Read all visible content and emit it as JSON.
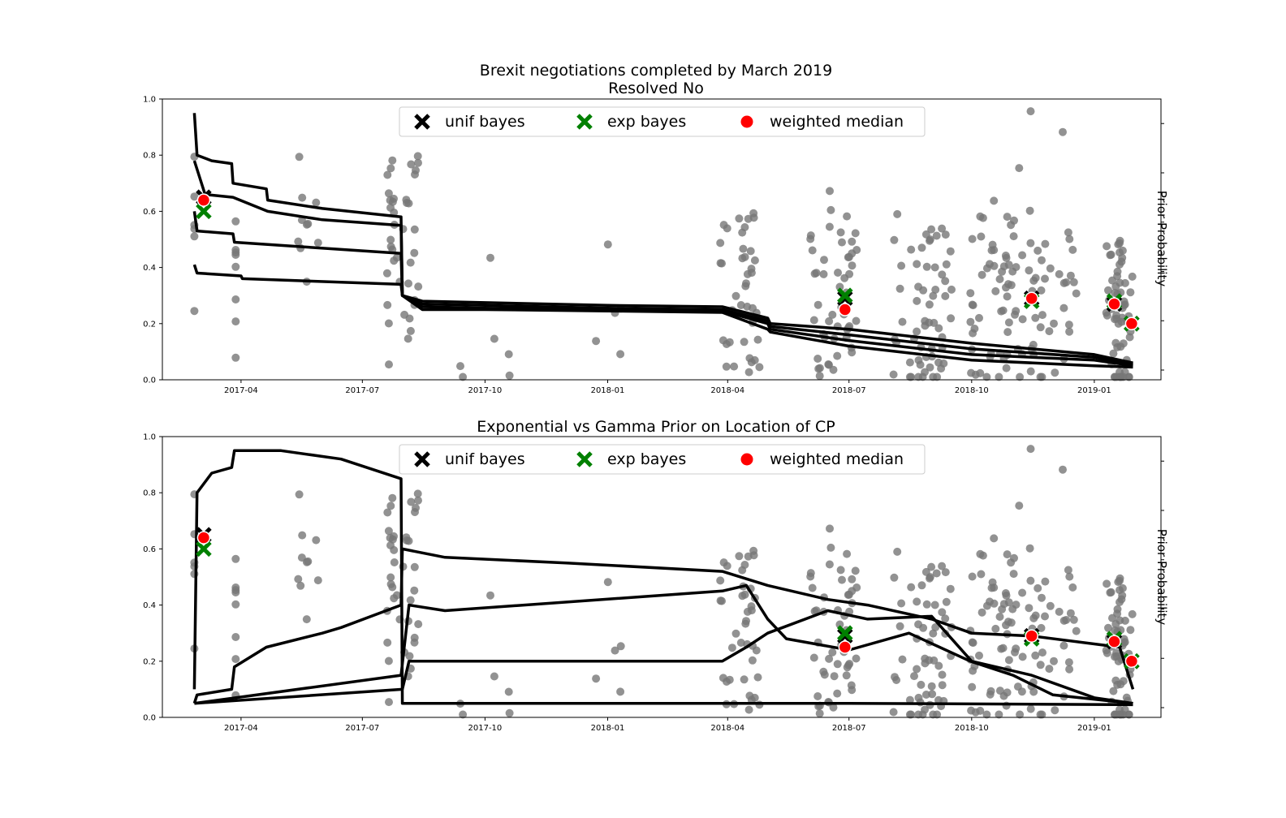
{
  "chart_data": [
    {
      "type": "scatter",
      "title": "Brexit negotiations completed by March 2019",
      "subtitle": "Resolved No",
      "xlabel": "",
      "ylabel": "",
      "right_ylabel": "Prior Probability",
      "x_range": [
        "2017-02-01",
        "2019-02-20"
      ],
      "ylim": [
        0,
        1
      ],
      "x_ticks": [
        "2017-04",
        "2017-07",
        "2017-10",
        "2018-01",
        "2018-04",
        "2018-07",
        "2018-10",
        "2019-01"
      ],
      "y_ticks": [
        "0.0",
        "0.2",
        "0.4",
        "0.6",
        "0.8",
        "1.0"
      ],
      "grid": false,
      "legend_position": "top-center",
      "legend": [
        {
          "label": "unif bayes",
          "marker": "x",
          "color": "#000000"
        },
        {
          "label": "exp bayes",
          "marker": "x",
          "color": "#008000"
        },
        {
          "label": "weighted median",
          "marker": "o",
          "color": "#ff0000"
        }
      ],
      "markers": {
        "unif_bayes": [
          [
            "2017-03-04",
            0.65
          ],
          [
            "2018-06-28",
            0.29
          ],
          [
            "2018-11-15",
            0.29
          ],
          [
            "2019-01-16",
            0.27
          ],
          [
            "2019-01-29",
            0.2
          ]
        ],
        "exp_bayes": [
          [
            "2017-03-04",
            0.6
          ],
          [
            "2018-06-28",
            0.3
          ],
          [
            "2018-11-15",
            0.28
          ],
          [
            "2019-01-16",
            0.28
          ],
          [
            "2019-01-29",
            0.2
          ]
        ],
        "weighted_median": [
          [
            "2017-03-04",
            0.64
          ],
          [
            "2018-06-28",
            0.25
          ],
          [
            "2018-11-15",
            0.29
          ],
          [
            "2019-01-16",
            0.27
          ],
          [
            "2019-01-29",
            0.2
          ]
        ]
      },
      "curves": [
        [
          [
            "2017-02-25",
            0.95
          ],
          [
            "2017-02-27",
            0.8
          ],
          [
            "2017-03-10",
            0.78
          ],
          [
            "2017-03-25",
            0.77
          ],
          [
            "2017-03-26",
            0.7
          ],
          [
            "2017-04-20",
            0.68
          ],
          [
            "2017-04-21",
            0.64
          ],
          [
            "2017-06-01",
            0.61
          ],
          [
            "2017-07-30",
            0.58
          ],
          [
            "2017-07-31",
            0.3
          ],
          [
            "2017-08-15",
            0.28
          ],
          [
            "2017-10-01",
            0.275
          ],
          [
            "2018-01-01",
            0.265
          ],
          [
            "2018-03-28",
            0.26
          ],
          [
            "2018-05-01",
            0.22
          ],
          [
            "2018-05-03",
            0.2
          ],
          [
            "2018-07-01",
            0.18
          ],
          [
            "2018-10-01",
            0.13
          ],
          [
            "2019-01-01",
            0.09
          ],
          [
            "2019-01-30",
            0.06
          ]
        ],
        [
          [
            "2017-02-25",
            0.78
          ],
          [
            "2017-03-05",
            0.66
          ],
          [
            "2017-03-26",
            0.65
          ],
          [
            "2017-04-21",
            0.6
          ],
          [
            "2017-06-01",
            0.57
          ],
          [
            "2017-07-30",
            0.55
          ],
          [
            "2017-07-31",
            0.3
          ],
          [
            "2017-08-15",
            0.27
          ],
          [
            "2017-10-01",
            0.265
          ],
          [
            "2018-01-01",
            0.255
          ],
          [
            "2018-03-28",
            0.25
          ],
          [
            "2018-05-01",
            0.21
          ],
          [
            "2018-05-03",
            0.19
          ],
          [
            "2018-07-01",
            0.16
          ],
          [
            "2018-10-01",
            0.11
          ],
          [
            "2019-01-01",
            0.08
          ],
          [
            "2019-01-30",
            0.055
          ]
        ],
        [
          [
            "2017-02-25",
            0.6
          ],
          [
            "2017-02-27",
            0.53
          ],
          [
            "2017-03-26",
            0.52
          ],
          [
            "2017-03-27",
            0.49
          ],
          [
            "2017-07-30",
            0.45
          ],
          [
            "2017-07-31",
            0.3
          ],
          [
            "2017-08-15",
            0.26
          ],
          [
            "2017-10-01",
            0.255
          ],
          [
            "2018-01-01",
            0.25
          ],
          [
            "2018-03-28",
            0.245
          ],
          [
            "2018-05-01",
            0.2
          ],
          [
            "2018-05-03",
            0.18
          ],
          [
            "2018-07-01",
            0.14
          ],
          [
            "2018-10-01",
            0.09
          ],
          [
            "2019-01-01",
            0.07
          ],
          [
            "2019-01-30",
            0.05
          ]
        ],
        [
          [
            "2017-02-25",
            0.41
          ],
          [
            "2017-02-27",
            0.38
          ],
          [
            "2017-04-01",
            0.37
          ],
          [
            "2017-04-02",
            0.36
          ],
          [
            "2017-07-30",
            0.34
          ],
          [
            "2017-07-31",
            0.3
          ],
          [
            "2017-08-15",
            0.25
          ],
          [
            "2017-10-01",
            0.25
          ],
          [
            "2018-01-01",
            0.245
          ],
          [
            "2018-03-28",
            0.24
          ],
          [
            "2018-05-01",
            0.18
          ],
          [
            "2018-05-03",
            0.17
          ],
          [
            "2018-07-01",
            0.12
          ],
          [
            "2018-10-01",
            0.07
          ],
          [
            "2019-01-01",
            0.05
          ],
          [
            "2019-01-30",
            0.045
          ]
        ]
      ]
    },
    {
      "type": "scatter",
      "title": "Exponential vs Gamma Prior on Location of CP",
      "xlabel": "",
      "ylabel": "",
      "right_ylabel": "Prior Probability",
      "x_range": [
        "2017-02-01",
        "2019-02-20"
      ],
      "ylim": [
        0,
        1
      ],
      "x_ticks": [
        "2017-04",
        "2017-07",
        "2017-10",
        "2018-01",
        "2018-04",
        "2018-07",
        "2018-10",
        "2019-01"
      ],
      "y_ticks": [
        "0.0",
        "0.2",
        "0.4",
        "0.6",
        "0.8",
        "1.0"
      ],
      "grid": false,
      "legend_position": "top-center",
      "legend": [
        {
          "label": "unif bayes",
          "marker": "x",
          "color": "#000000"
        },
        {
          "label": "exp bayes",
          "marker": "x",
          "color": "#008000"
        },
        {
          "label": "weighted median",
          "marker": "o",
          "color": "#ff0000"
        }
      ],
      "markers": {
        "unif_bayes": [
          [
            "2017-03-04",
            0.65
          ],
          [
            "2018-06-28",
            0.29
          ],
          [
            "2018-11-15",
            0.29
          ],
          [
            "2019-01-16",
            0.27
          ],
          [
            "2019-01-29",
            0.2
          ]
        ],
        "exp_bayes": [
          [
            "2017-03-04",
            0.6
          ],
          [
            "2018-06-28",
            0.3
          ],
          [
            "2018-11-15",
            0.28
          ],
          [
            "2019-01-16",
            0.28
          ],
          [
            "2019-01-29",
            0.2
          ]
        ],
        "weighted_median": [
          [
            "2017-03-04",
            0.64
          ],
          [
            "2018-06-28",
            0.25
          ],
          [
            "2018-11-15",
            0.29
          ],
          [
            "2019-01-16",
            0.27
          ],
          [
            "2019-01-29",
            0.2
          ]
        ]
      },
      "curves": [
        [
          [
            "2017-02-25",
            0.1
          ],
          [
            "2017-02-27",
            0.8
          ],
          [
            "2017-03-10",
            0.87
          ],
          [
            "2017-03-25",
            0.89
          ],
          [
            "2017-03-27",
            0.95
          ],
          [
            "2017-05-01",
            0.95
          ],
          [
            "2017-06-15",
            0.92
          ],
          [
            "2017-07-30",
            0.85
          ],
          [
            "2017-07-31",
            0.05
          ],
          [
            "2017-10-01",
            0.05
          ],
          [
            "2018-07-01",
            0.05
          ],
          [
            "2019-01-30",
            0.045
          ]
        ],
        [
          [
            "2017-02-25",
            0.05
          ],
          [
            "2017-02-27",
            0.08
          ],
          [
            "2017-03-25",
            0.1
          ],
          [
            "2017-03-27",
            0.18
          ],
          [
            "2017-04-20",
            0.25
          ],
          [
            "2017-06-01",
            0.3
          ],
          [
            "2017-06-15",
            0.32
          ],
          [
            "2017-07-30",
            0.4
          ],
          [
            "2017-07-31",
            0.6
          ],
          [
            "2017-09-01",
            0.57
          ],
          [
            "2017-12-01",
            0.55
          ],
          [
            "2018-03-28",
            0.52
          ],
          [
            "2018-05-01",
            0.47
          ],
          [
            "2018-06-15",
            0.42
          ],
          [
            "2018-07-15",
            0.4
          ],
          [
            "2018-09-01",
            0.35
          ],
          [
            "2018-10-01",
            0.3
          ],
          [
            "2018-11-15",
            0.29
          ],
          [
            "2019-01-20",
            0.25
          ],
          [
            "2019-01-30",
            0.1
          ]
        ],
        [
          [
            "2017-02-25",
            0.05
          ],
          [
            "2017-07-30",
            0.15
          ],
          [
            "2017-08-05",
            0.4
          ],
          [
            "2017-09-01",
            0.38
          ],
          [
            "2018-03-28",
            0.45
          ],
          [
            "2018-04-15",
            0.47
          ],
          [
            "2018-05-01",
            0.35
          ],
          [
            "2018-05-15",
            0.28
          ],
          [
            "2018-07-01",
            0.24
          ],
          [
            "2018-08-15",
            0.3
          ],
          [
            "2018-09-30",
            0.2
          ],
          [
            "2018-11-01",
            0.15
          ],
          [
            "2018-12-01",
            0.08
          ],
          [
            "2019-01-30",
            0.05
          ]
        ],
        [
          [
            "2017-02-25",
            0.05
          ],
          [
            "2017-07-31",
            0.1
          ],
          [
            "2017-08-05",
            0.2
          ],
          [
            "2017-10-01",
            0.2
          ],
          [
            "2018-03-28",
            0.2
          ],
          [
            "2018-04-15",
            0.25
          ],
          [
            "2018-05-01",
            0.3
          ],
          [
            "2018-06-15",
            0.38
          ],
          [
            "2018-07-15",
            0.35
          ],
          [
            "2018-09-01",
            0.36
          ],
          [
            "2018-10-01",
            0.2
          ],
          [
            "2018-11-15",
            0.15
          ],
          [
            "2019-01-01",
            0.07
          ],
          [
            "2019-01-30",
            0.05
          ]
        ]
      ]
    }
  ]
}
